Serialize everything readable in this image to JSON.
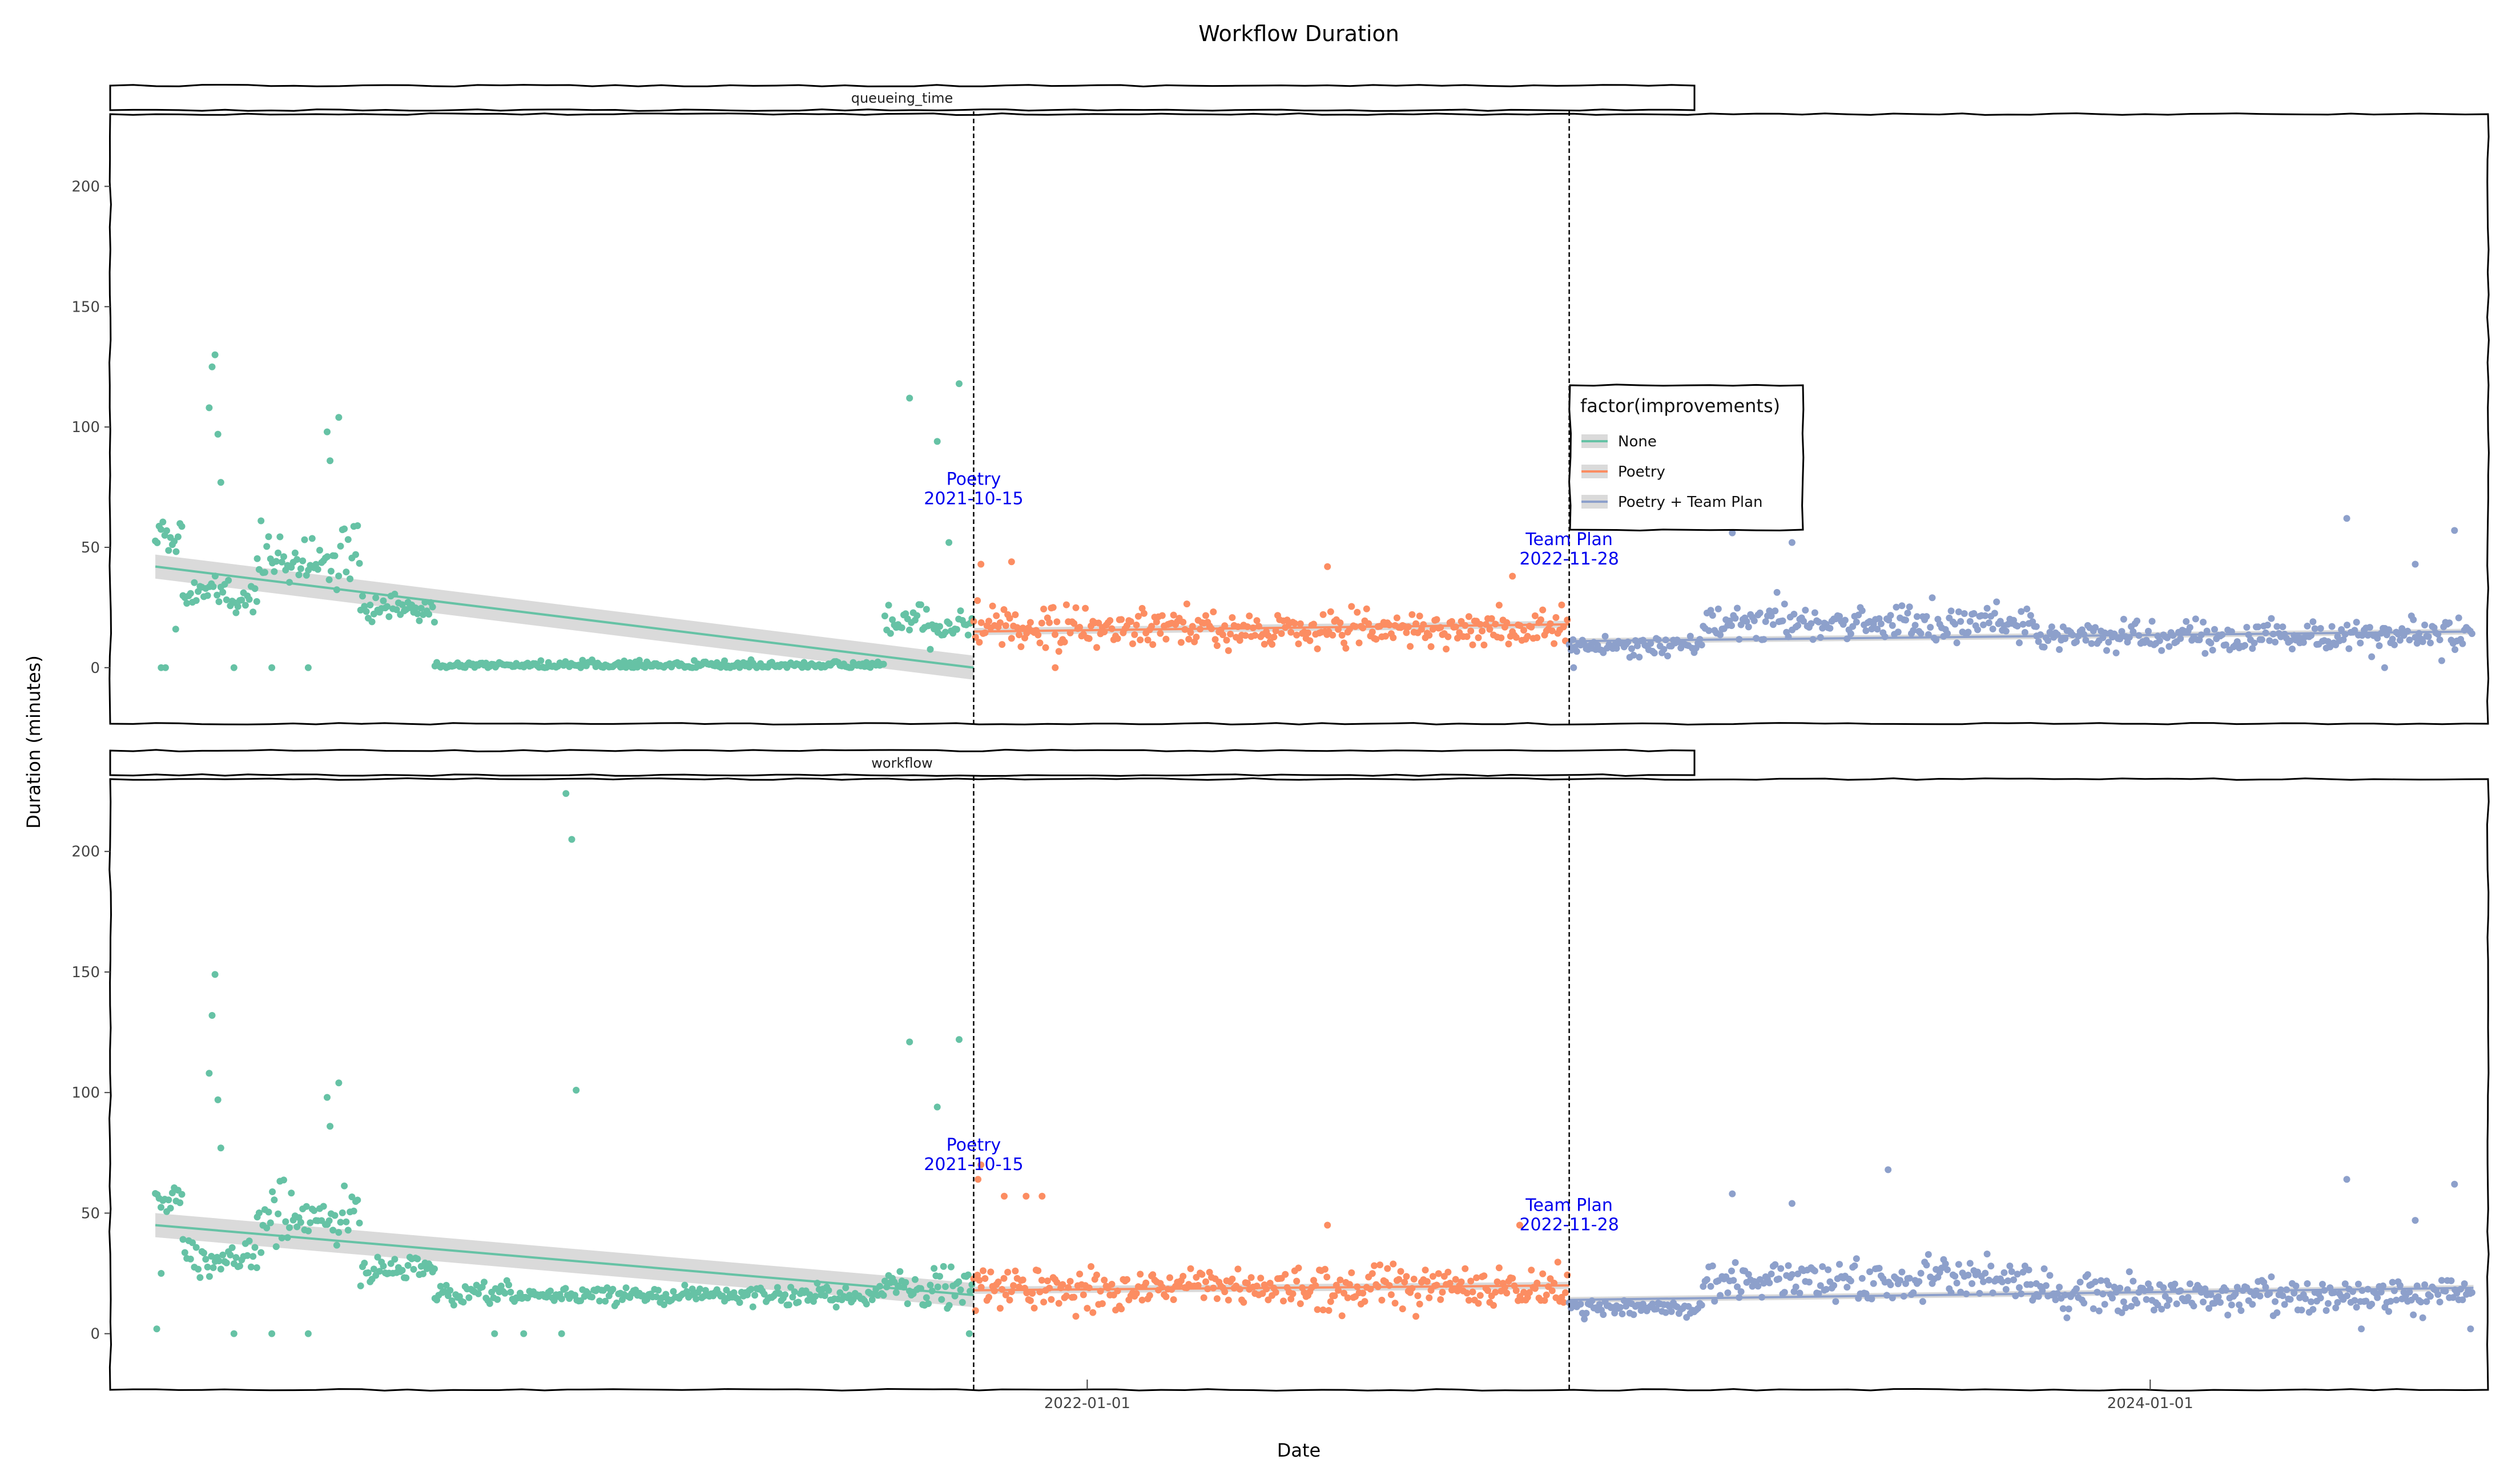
{
  "chart_data": {
    "type": "scatter",
    "title": "Workflow Duration",
    "xlabel": "Date",
    "ylabel": "Duration (minutes)",
    "x_range": [
      "2020-03-01",
      "2024-08-20"
    ],
    "ylim": [
      -15,
      230
    ],
    "y_ticks": [
      0,
      50,
      100,
      150,
      200
    ],
    "x_ticks": [
      "2022-01-01",
      "2024-01-01"
    ],
    "grid": false,
    "legend": {
      "title": "factor(improvements)",
      "placement": "inside-right",
      "entries": [
        "None",
        "Poetry",
        "Poetry + Team Plan"
      ]
    },
    "colors": {
      "None": "#66c2a5",
      "Poetry": "#fc8d62",
      "Poetry + Team Plan": "#8da0cb"
    },
    "annotations": [
      {
        "date": "2021-10-15",
        "label_line1": "Poetry",
        "label_line2": "2021-10-15"
      },
      {
        "date": "2022-11-28",
        "label_line1": "Team Plan",
        "label_line2": "2022-11-28"
      }
    ],
    "panels": [
      {
        "strip": "queueing_time",
        "annotation_y": [
          75,
          50
        ],
        "series": [
          {
            "name": "None",
            "date_start": "2020-04-01",
            "date_end": "2021-10-15",
            "trend": [
              42,
              0
            ],
            "band": 5,
            "segments": [
              {
                "from": "2020-04-01",
                "to": "2020-04-20",
                "level": 55,
                "spread": 6
              },
              {
                "from": "2020-04-20",
                "to": "2020-06-10",
                "level": 30,
                "spread": 8
              },
              {
                "from": "2020-06-10",
                "to": "2020-08-20",
                "level": 45,
                "spread": 14
              },
              {
                "from": "2020-08-20",
                "to": "2020-10-10",
                "level": 24,
                "spread": 6
              },
              {
                "from": "2020-10-10",
                "to": "2021-08-15",
                "level": 1,
                "spread": 2
              },
              {
                "from": "2021-08-15",
                "to": "2021-10-15",
                "level": 18,
                "spread": 8
              }
            ],
            "extra_points": [
              [
                "2020-05-12",
                130
              ],
              [
                "2020-05-10",
                125
              ],
              [
                "2020-05-08",
                108
              ],
              [
                "2020-05-14",
                97
              ],
              [
                "2020-05-16",
                77
              ],
              [
                "2020-08-05",
                104
              ],
              [
                "2020-07-28",
                98
              ],
              [
                "2020-07-30",
                86
              ],
              [
                "2021-09-01",
                112
              ],
              [
                "2021-10-05",
                118
              ],
              [
                "2021-09-20",
                94
              ],
              [
                "2021-09-28",
                52
              ],
              [
                "2020-04-05",
                0
              ],
              [
                "2020-04-08",
                0
              ],
              [
                "2020-05-25",
                0
              ],
              [
                "2020-06-20",
                0
              ],
              [
                "2020-07-15",
                0
              ],
              [
                "2020-04-15",
                16
              ]
            ]
          },
          {
            "name": "Poetry",
            "date_start": "2021-10-15",
            "date_end": "2022-11-28",
            "trend": [
              15,
              18
            ],
            "band": 1.5,
            "segments": [
              {
                "from": "2021-10-15",
                "to": "2022-02-15",
                "level": 16,
                "spread": 9
              },
              {
                "from": "2022-02-15",
                "to": "2022-11-28",
                "level": 16,
                "spread": 8
              }
            ],
            "extra_points": [
              [
                "2021-11-10",
                44
              ],
              [
                "2021-10-20",
                43
              ],
              [
                "2022-06-15",
                42
              ],
              [
                "2022-10-20",
                38
              ],
              [
                "2021-12-10",
                0
              ]
            ]
          },
          {
            "name": "Poetry + Team Plan",
            "date_start": "2022-11-28",
            "date_end": "2024-08-10",
            "trend": [
              11,
              15
            ],
            "band": 1.2,
            "segments": [
              {
                "from": "2022-11-28",
                "to": "2023-02-28",
                "level": 9,
                "spread": 4
              },
              {
                "from": "2023-02-28",
                "to": "2023-10-15",
                "level": 19,
                "spread": 8
              },
              {
                "from": "2023-10-15",
                "to": "2024-08-10",
                "level": 13,
                "spread": 7
              }
            ],
            "extra_points": [
              [
                "2023-03-20",
                56
              ],
              [
                "2023-04-30",
                52
              ],
              [
                "2024-05-15",
                62
              ],
              [
                "2024-07-28",
                57
              ],
              [
                "2024-07-01",
                43
              ],
              [
                "2022-12-01",
                0
              ],
              [
                "2024-06-10",
                0
              ]
            ]
          }
        ]
      },
      {
        "strip": "workflow",
        "annotation_y": [
          75,
          50
        ],
        "series": [
          {
            "name": "None",
            "date_start": "2020-04-01",
            "date_end": "2021-10-15",
            "trend": [
              45,
              16
            ],
            "band": 5,
            "segments": [
              {
                "from": "2020-04-01",
                "to": "2020-04-20",
                "level": 57,
                "spread": 6
              },
              {
                "from": "2020-04-20",
                "to": "2020-06-10",
                "level": 32,
                "spread": 8
              },
              {
                "from": "2020-06-10",
                "to": "2020-08-20",
                "level": 47,
                "spread": 14
              },
              {
                "from": "2020-08-20",
                "to": "2020-10-10",
                "level": 27,
                "spread": 6
              },
              {
                "from": "2020-10-10",
                "to": "2021-08-15",
                "level": 16,
                "spread": 4
              },
              {
                "from": "2021-08-15",
                "to": "2021-10-15",
                "level": 20,
                "spread": 8
              }
            ],
            "extra_points": [
              [
                "2020-05-12",
                149
              ],
              [
                "2020-05-10",
                132
              ],
              [
                "2020-05-08",
                108
              ],
              [
                "2020-05-14",
                97
              ],
              [
                "2020-05-16",
                77
              ],
              [
                "2020-08-05",
                104
              ],
              [
                "2020-07-28",
                98
              ],
              [
                "2020-07-30",
                86
              ],
              [
                "2021-01-08",
                224
              ],
              [
                "2021-01-12",
                205
              ],
              [
                "2021-01-15",
                101
              ],
              [
                "2021-09-01",
                121
              ],
              [
                "2021-10-05",
                122
              ],
              [
                "2021-09-20",
                94
              ],
              [
                "2020-04-02",
                2
              ],
              [
                "2020-04-05",
                25
              ],
              [
                "2020-05-25",
                0
              ],
              [
                "2020-06-20",
                0
              ],
              [
                "2020-07-15",
                0
              ],
              [
                "2020-11-20",
                0
              ],
              [
                "2020-12-10",
                0
              ],
              [
                "2021-01-05",
                0
              ],
              [
                "2021-10-12",
                0
              ]
            ]
          },
          {
            "name": "Poetry",
            "date_start": "2021-10-15",
            "date_end": "2022-11-28",
            "trend": [
              18,
              20
            ],
            "band": 1.5,
            "segments": [
              {
                "from": "2021-10-15",
                "to": "2022-02-15",
                "level": 19,
                "spread": 10
              },
              {
                "from": "2022-02-15",
                "to": "2022-11-28",
                "level": 19,
                "spread": 9
              }
            ],
            "extra_points": [
              [
                "2021-11-20",
                57
              ],
              [
                "2021-11-05",
                57
              ],
              [
                "2021-12-01",
                57
              ],
              [
                "2022-06-15",
                45
              ],
              [
                "2022-10-25",
                45
              ],
              [
                "2021-10-18",
                64
              ],
              [
                "2021-10-20",
                70
              ]
            ]
          },
          {
            "name": "Poetry + Team Plan",
            "date_start": "2022-11-28",
            "date_end": "2024-08-10",
            "trend": [
              14,
              19
            ],
            "band": 1.2,
            "segments": [
              {
                "from": "2022-11-28",
                "to": "2023-02-28",
                "level": 11,
                "spread": 4
              },
              {
                "from": "2023-02-28",
                "to": "2023-10-15",
                "level": 22,
                "spread": 9
              },
              {
                "from": "2023-10-15",
                "to": "2024-08-10",
                "level": 16,
                "spread": 8
              }
            ],
            "extra_points": [
              [
                "2023-03-20",
                58
              ],
              [
                "2023-04-30",
                54
              ],
              [
                "2023-07-05",
                68
              ],
              [
                "2024-05-15",
                64
              ],
              [
                "2024-07-28",
                62
              ],
              [
                "2024-07-01",
                47
              ],
              [
                "2024-05-25",
                2
              ],
              [
                "2024-08-08",
                2
              ]
            ]
          }
        ]
      }
    ]
  }
}
